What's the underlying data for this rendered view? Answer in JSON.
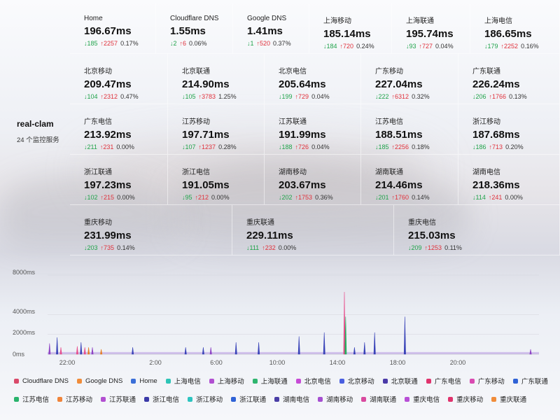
{
  "monitor": {
    "name": "real-clam",
    "subtitle": "24 个监控服务"
  },
  "cards": [
    {
      "title": "Home",
      "value": "196.67ms",
      "down": "↓185",
      "up": "↑2257",
      "pct": "0.17%"
    },
    {
      "title": "Cloudflare DNS",
      "value": "1.55ms",
      "down": "↓2",
      "up": "↑6",
      "pct": "0.06%"
    },
    {
      "title": "Google DNS",
      "value": "1.41ms",
      "down": "↓1",
      "up": "↑520",
      "pct": "0.37%"
    },
    {
      "title": "上海移动",
      "value": "185.14ms",
      "down": "↓184",
      "up": "↑720",
      "pct": "0.24%"
    },
    {
      "title": "上海联通",
      "value": "195.74ms",
      "down": "↓93",
      "up": "↑727",
      "pct": "0.04%"
    },
    {
      "title": "上海电信",
      "value": "186.65ms",
      "down": "↓179",
      "up": "↑2252",
      "pct": "0.16%"
    },
    {
      "title": "北京移动",
      "value": "209.47ms",
      "down": "↓104",
      "up": "↑2312",
      "pct": "0.47%"
    },
    {
      "title": "北京联通",
      "value": "214.90ms",
      "down": "↓105",
      "up": "↑3783",
      "pct": "1.25%"
    },
    {
      "title": "北京电信",
      "value": "205.64ms",
      "down": "↓199",
      "up": "↑729",
      "pct": "0.04%"
    },
    {
      "title": "广东移动",
      "value": "227.04ms",
      "down": "↓222",
      "up": "↑6312",
      "pct": "0.32%"
    },
    {
      "title": "广东联通",
      "value": "226.24ms",
      "down": "↓206",
      "up": "↑1766",
      "pct": "0.13%"
    },
    {
      "title": "广东电信",
      "value": "213.92ms",
      "down": "↓211",
      "up": "↑231",
      "pct": "0.00%"
    },
    {
      "title": "江苏移动",
      "value": "197.71ms",
      "down": "↓107",
      "up": "↑1237",
      "pct": "0.28%"
    },
    {
      "title": "江苏联通",
      "value": "191.99ms",
      "down": "↓188",
      "up": "↑726",
      "pct": "0.04%"
    },
    {
      "title": "江苏电信",
      "value": "188.51ms",
      "down": "↓185",
      "up": "↑2256",
      "pct": "0.18%"
    },
    {
      "title": "浙江移动",
      "value": "187.68ms",
      "down": "↓186",
      "up": "↑713",
      "pct": "0.20%"
    },
    {
      "title": "浙江联通",
      "value": "197.23ms",
      "down": "↓102",
      "up": "↑215",
      "pct": "0.00%"
    },
    {
      "title": "浙江电信",
      "value": "191.05ms",
      "down": "↓95",
      "up": "↑212",
      "pct": "0.00%"
    },
    {
      "title": "湖南移动",
      "value": "203.67ms",
      "down": "↓202",
      "up": "↑1753",
      "pct": "0.36%"
    },
    {
      "title": "湖南联通",
      "value": "214.46ms",
      "down": "↓201",
      "up": "↑1760",
      "pct": "0.14%"
    },
    {
      "title": "湖南电信",
      "value": "218.36ms",
      "down": "↓114",
      "up": "↑241",
      "pct": "0.00%"
    },
    {
      "title": "重庆移动",
      "value": "231.99ms",
      "down": "↓203",
      "up": "↑735",
      "pct": "0.14%"
    },
    {
      "title": "重庆联通",
      "value": "229.11ms",
      "down": "↓111",
      "up": "↑232",
      "pct": "0.00%"
    },
    {
      "title": "重庆电信",
      "value": "215.03ms",
      "down": "↓209",
      "up": "↑1253",
      "pct": "0.11%"
    }
  ],
  "chart_data": {
    "type": "line",
    "y_ticks": [
      "8000ms",
      "4000ms",
      "2000ms",
      "0ms"
    ],
    "x_ticks": [
      "22:00",
      "2:00",
      "6:00",
      "10:00",
      "14:00",
      "18:00",
      "20:00"
    ],
    "ylim": [
      0,
      8000
    ],
    "spikes": [
      {
        "t": "20:50",
        "v": 1100,
        "color": "#8e44c4"
      },
      {
        "t": "21:20",
        "v": 1700,
        "color": "#3a44b8"
      },
      {
        "t": "21:35",
        "v": 700,
        "color": "#e74c8b"
      },
      {
        "t": "22:40",
        "v": 800,
        "color": "#e74c8b"
      },
      {
        "t": "22:55",
        "v": 1200,
        "color": "#3a44b8"
      },
      {
        "t": "23:10",
        "v": 700,
        "color": "#e74c8b"
      },
      {
        "t": "23:25",
        "v": 700,
        "color": "#e67e22"
      },
      {
        "t": "23:40",
        "v": 700,
        "color": "#8e44c4"
      },
      {
        "t": "0:15",
        "v": 500,
        "color": "#e67e22"
      },
      {
        "t": "2:20",
        "v": 700,
        "color": "#3a44b8"
      },
      {
        "t": "5:50",
        "v": 700,
        "color": "#3a44b8"
      },
      {
        "t": "7:00",
        "v": 700,
        "color": "#3a44b8"
      },
      {
        "t": "7:30",
        "v": 700,
        "color": "#8e44c4"
      },
      {
        "t": "9:10",
        "v": 1200,
        "color": "#3a44b8"
      },
      {
        "t": "10:40",
        "v": 1200,
        "color": "#3a44b8"
      },
      {
        "t": "13:20",
        "v": 1800,
        "color": "#3a44b8"
      },
      {
        "t": "15:00",
        "v": 2200,
        "color": "#3a44b8"
      },
      {
        "t": "16:20",
        "v": 6300,
        "color": "#e74c8b"
      },
      {
        "t": "16:25",
        "v": 3800,
        "color": "#27ae60"
      },
      {
        "t": "17:00",
        "v": 700,
        "color": "#3a44b8"
      },
      {
        "t": "17:40",
        "v": 1200,
        "color": "#3a44b8"
      },
      {
        "t": "18:20",
        "v": 2200,
        "color": "#3a44b8"
      },
      {
        "t": "20:20",
        "v": 3800,
        "color": "#3a44b8"
      },
      {
        "t": "22:40",
        "v": 500,
        "color": "#8e44c4"
      }
    ]
  },
  "legend": [
    {
      "label": "Cloudflare DNS",
      "color": "#d94a6a"
    },
    {
      "label": "Google DNS",
      "color": "#f08c3a"
    },
    {
      "label": "Home",
      "color": "#3b6fd8"
    },
    {
      "label": "上海电信",
      "color": "#2ec4b6"
    },
    {
      "label": "上海移动",
      "color": "#b14fd1"
    },
    {
      "label": "上海联通",
      "color": "#2fb56f"
    },
    {
      "label": "北京电信",
      "color": "#c74bd6"
    },
    {
      "label": "北京移动",
      "color": "#4a5fe0"
    },
    {
      "label": "北京联通",
      "color": "#4b3aa8"
    },
    {
      "label": "广东电信",
      "color": "#e0336d"
    },
    {
      "label": "广东移动",
      "color": "#d94ab1"
    },
    {
      "label": "广东联通",
      "color": "#2f62d6"
    },
    {
      "label": "江苏电信",
      "color": "#29b36c"
    },
    {
      "label": "江苏移动",
      "color": "#f0843a"
    },
    {
      "label": "江苏联通",
      "color": "#b24fd1"
    },
    {
      "label": "浙江电信",
      "color": "#3b3aa8"
    },
    {
      "label": "浙江移动",
      "color": "#2dc4c0"
    },
    {
      "label": "浙江联通",
      "color": "#2f62d6"
    },
    {
      "label": "湖南电信",
      "color": "#4a3ea6"
    },
    {
      "label": "湖南移动",
      "color": "#a64fd1"
    },
    {
      "label": "湖南联通",
      "color": "#d94a9f"
    },
    {
      "label": "重庆电信",
      "color": "#b84fd6"
    },
    {
      "label": "重庆移动",
      "color": "#e0336d"
    },
    {
      "label": "重庆联通",
      "color": "#f08c3a"
    }
  ]
}
